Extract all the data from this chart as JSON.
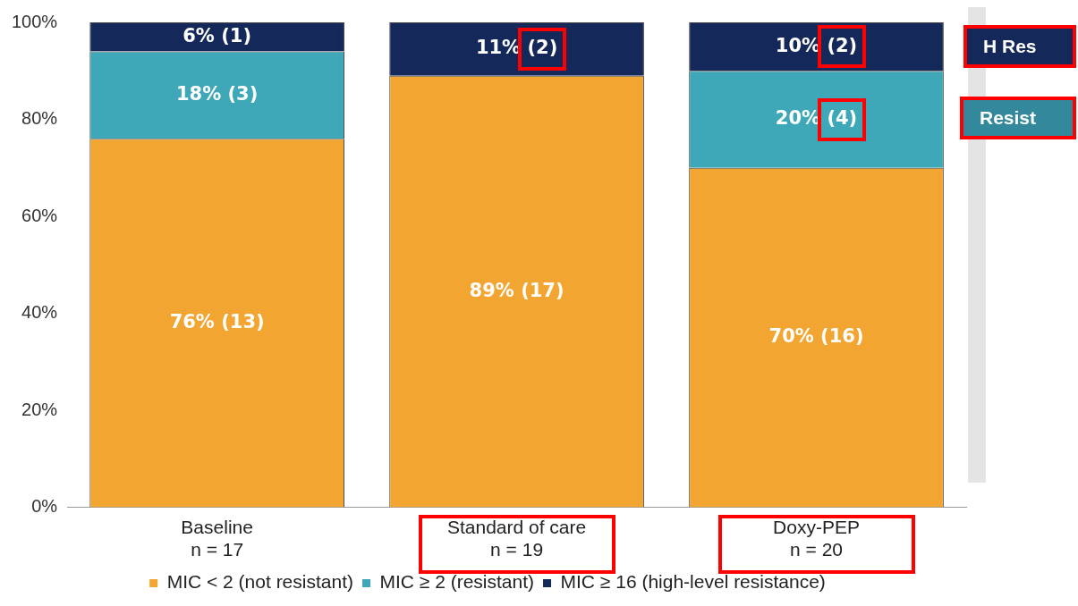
{
  "chart_data": {
    "type": "bar",
    "stacked": true,
    "categories": [
      "Baseline\nn = 17",
      "Standard of care\nn = 19",
      "Doxy-PEP\nn = 20"
    ],
    "series": [
      {
        "name": "MIC < 2 (not resistant)",
        "color": "#f2a530",
        "values": [
          76,
          89,
          70
        ],
        "value_labels": [
          "76% (13)",
          "89% (17)",
          "70% (16)"
        ]
      },
      {
        "name": "MIC ≥ 2 (resistant)",
        "color": "#3fa8b8",
        "values": [
          18,
          0,
          20
        ],
        "value_labels": [
          "18% (3)",
          null,
          "20% (4)"
        ]
      },
      {
        "name": "MIC ≥ 16 (high-level resistance)",
        "color": "#14285a",
        "values": [
          6,
          11,
          10
        ],
        "value_labels": [
          "6% (1)",
          "11% (2)",
          "10% (2)"
        ]
      }
    ],
    "ylim": [
      0,
      100
    ],
    "yticks": [
      {
        "value": 0,
        "label": "0%"
      },
      {
        "value": 20,
        "label": "20%"
      },
      {
        "value": 40,
        "label": "40%"
      },
      {
        "value": 60,
        "label": "60%"
      },
      {
        "value": 80,
        "label": "80%"
      },
      {
        "value": 100,
        "label": "100%"
      }
    ],
    "grid": false,
    "legend": "bottom",
    "annotations": [
      "H Res",
      "Resist"
    ]
  }
}
